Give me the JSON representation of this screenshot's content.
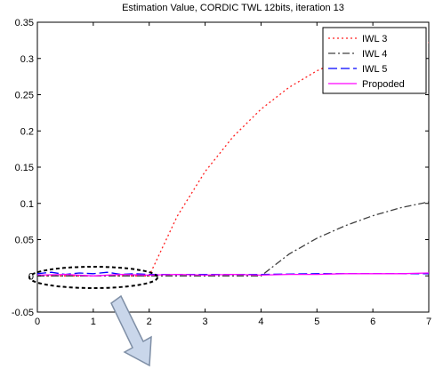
{
  "chart_data": {
    "type": "line",
    "title": "Estimation Value, CORDIC TWL 12bits, iteration 13",
    "xlabel": "",
    "ylabel": "",
    "xlim": [
      0,
      7
    ],
    "ylim": [
      -0.05,
      0.35
    ],
    "xticks": [
      "0",
      "1",
      "2",
      "3",
      "4",
      "5",
      "6",
      "7"
    ],
    "yticks": [
      "-0.05",
      "0",
      "0.05",
      "0.1",
      "0.15",
      "0.2",
      "0.25",
      "0.3",
      "0.35"
    ],
    "grid": false,
    "legend_position": "top-right",
    "series": [
      {
        "name": "IWL 3",
        "color": "#ff2020",
        "style": "dotted",
        "x": [
          0,
          2,
          2.5,
          3,
          3.5,
          4,
          4.5,
          5,
          5.5,
          6,
          6.5,
          7
        ],
        "y": [
          0,
          0,
          0.082,
          0.144,
          0.192,
          0.23,
          0.26,
          0.283,
          0.3,
          0.311,
          0.318,
          0.322
        ]
      },
      {
        "name": "IWL 4",
        "color": "#404040",
        "style": "dashdot",
        "x": [
          0,
          4,
          4.5,
          5,
          5.5,
          6,
          6.5,
          7
        ],
        "y": [
          0,
          0,
          0.03,
          0.052,
          0.069,
          0.083,
          0.094,
          0.102
        ]
      },
      {
        "name": "IWL 5",
        "color": "#0000ff",
        "style": "dashed",
        "x": [
          0,
          0.25,
          0.5,
          0.75,
          1,
          1.25,
          1.5,
          1.75,
          2,
          3,
          4,
          5,
          6,
          7
        ],
        "y": [
          0.003,
          0.005,
          0.002,
          0.004,
          0.003,
          0.005,
          0.002,
          0.003,
          0.002,
          0.002,
          0.002,
          0.003,
          0.003,
          0.003
        ]
      },
      {
        "name": "Propoded",
        "color": "#ff00ff",
        "style": "solid",
        "x": [
          0,
          0.5,
          1,
          1.5,
          2,
          2.5,
          3,
          3.5,
          4,
          4.5,
          5,
          5.5,
          6,
          6.5,
          7
        ],
        "y": [
          0.001,
          0.002,
          0.0,
          0.002,
          0.001,
          0.002,
          0.001,
          0.002,
          0.001,
          0.002,
          0.002,
          0.003,
          0.003,
          0.003,
          0.004
        ]
      }
    ]
  }
}
